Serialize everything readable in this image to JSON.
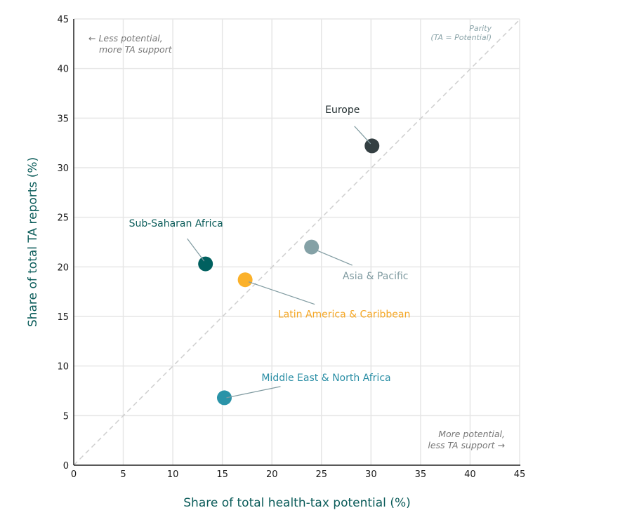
{
  "chart_data": {
    "type": "scatter",
    "xlabel": "Share of total health-tax potential (%)",
    "ylabel": "Share of total TA reports (%)",
    "xlim": [
      0,
      45
    ],
    "ylim": [
      0,
      45
    ],
    "xticks": [
      "0",
      "5",
      "10",
      "15",
      "20",
      "25",
      "30",
      "35",
      "40",
      "45"
    ],
    "yticks": [
      "0",
      "5",
      "10",
      "15",
      "20",
      "25",
      "30",
      "35",
      "40",
      "45"
    ],
    "grid": true,
    "points": [
      {
        "name": "Europe",
        "x": 30.1,
        "y": 32.2,
        "color": "#343f42",
        "label_color": "#1e2a2c"
      },
      {
        "name": "Asia & Pacific",
        "x": 24.0,
        "y": 22.0,
        "color": "#84a1a6",
        "label_color": "#7f9aa0"
      },
      {
        "name": "Sub-Saharan Africa",
        "x": 13.3,
        "y": 20.3,
        "color": "#00605f",
        "label_color": "#0b5c5a"
      },
      {
        "name": "Latin America & Caribbean",
        "x": 17.3,
        "y": 18.7,
        "color": "#fbb12a",
        "label_color": "#f5a623"
      },
      {
        "name": "Middle East & North Africa",
        "x": 15.2,
        "y": 6.8,
        "color": "#2a93a8",
        "label_color": "#2a8ea5"
      }
    ],
    "reference_line": {
      "label_line1": "Parity",
      "label_line2": "(TA = Potential)",
      "style": "dashed",
      "color": "#cccccc"
    },
    "annotations": {
      "top_left_line1": "← Less potential,",
      "top_left_line2": "more TA support",
      "bottom_right_line1": "More potential,",
      "bottom_right_line2": "less TA support →"
    }
  }
}
